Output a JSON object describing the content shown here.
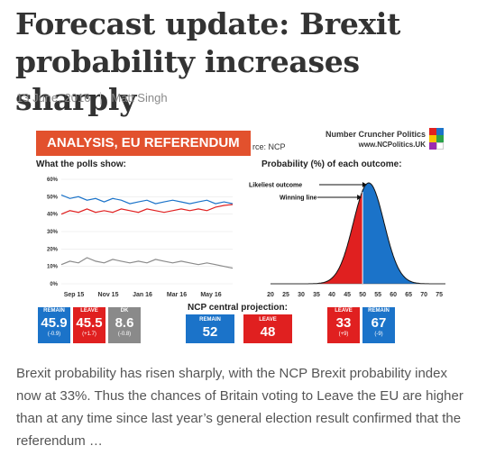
{
  "article": {
    "title": "Forecast update: Brexit probability increases sharply",
    "date": "13 June, 2016",
    "author": "Matt Singh",
    "excerpt": "Brexit probability has risen sharply, with the NCP Brexit probability index now at 33%. Thus the chances of Britain voting to Leave the EU are higher than at any time since last year’s general election result confirmed that the referendum …"
  },
  "figure": {
    "tag": "ANALYSIS, EU REFERENDUM",
    "brand_name": "Number Cruncher Politics",
    "brand_url": "www.NCPolitics.UK",
    "source_fragment": "rce: NCP",
    "colors": {
      "remain": "#1b73c9",
      "leave": "#e02020",
      "dk": "#8a8a8a",
      "tag": "#e2512d"
    },
    "polls_title": "What the polls show:",
    "prob_title": "Probability (%) of each outcome:",
    "projection_title": "NCP central projection:",
    "likeliest_label": "Likeliest outcome",
    "winning_label": "Winning line",
    "poll_stats": [
      {
        "label": "REMAIN",
        "value": "45.9",
        "change": "(-0.9)",
        "color": "#1b73c9"
      },
      {
        "label": "LEAVE",
        "value": "45.5",
        "change": "(+1.7)",
        "color": "#e02020"
      },
      {
        "label": "DK",
        "value": "8.6",
        "change": "(-0.8)",
        "color": "#8a8a8a"
      }
    ],
    "projection_stats": [
      {
        "label": "REMAIN",
        "value": "52",
        "color": "#1b73c9"
      },
      {
        "label": "LEAVE",
        "value": "48",
        "color": "#e02020"
      }
    ],
    "probability_stats": [
      {
        "label": "LEAVE",
        "value": "33",
        "change": "(+9)",
        "color": "#e02020"
      },
      {
        "label": "REMAIN",
        "value": "67",
        "change": "(-9)",
        "color": "#1b73c9"
      }
    ]
  },
  "chart_data": [
    {
      "type": "line",
      "title": "What the polls show:",
      "x_ticks": [
        "Sep 15",
        "Nov 15",
        "Jan 16",
        "Mar 16",
        "May 16"
      ],
      "y_ticks": [
        "0%",
        "10%",
        "20%",
        "30%",
        "40%",
        "50%",
        "60%"
      ],
      "ylim": [
        0,
        60
      ],
      "series": [
        {
          "name": "REMAIN",
          "color": "#1b73c9",
          "values": [
            51,
            49,
            50,
            48,
            49,
            47,
            49,
            48,
            46,
            47,
            48,
            46,
            47,
            48,
            47,
            46,
            47,
            48,
            46,
            47,
            46
          ]
        },
        {
          "name": "LEAVE",
          "color": "#e02020",
          "values": [
            40,
            42,
            41,
            43,
            41,
            42,
            41,
            43,
            42,
            41,
            43,
            42,
            41,
            42,
            43,
            42,
            43,
            42,
            44,
            45,
            45.5
          ]
        },
        {
          "name": "DK",
          "color": "#8a8a8a",
          "values": [
            11,
            13,
            12,
            15,
            13,
            12,
            14,
            13,
            12,
            13,
            12,
            14,
            13,
            12,
            13,
            12,
            11,
            12,
            11,
            10,
            9
          ]
        }
      ]
    },
    {
      "type": "area",
      "title": "Probability (%) of each outcome:",
      "x_ticks": [
        "20",
        "25",
        "30",
        "35",
        "40",
        "45",
        "50",
        "55",
        "60",
        "65",
        "70",
        "75"
      ],
      "xlim": [
        20,
        77
      ],
      "center": 52,
      "sd": 5,
      "split_at": 50,
      "left_color": "#e02020",
      "right_color": "#1b73c9"
    }
  ]
}
